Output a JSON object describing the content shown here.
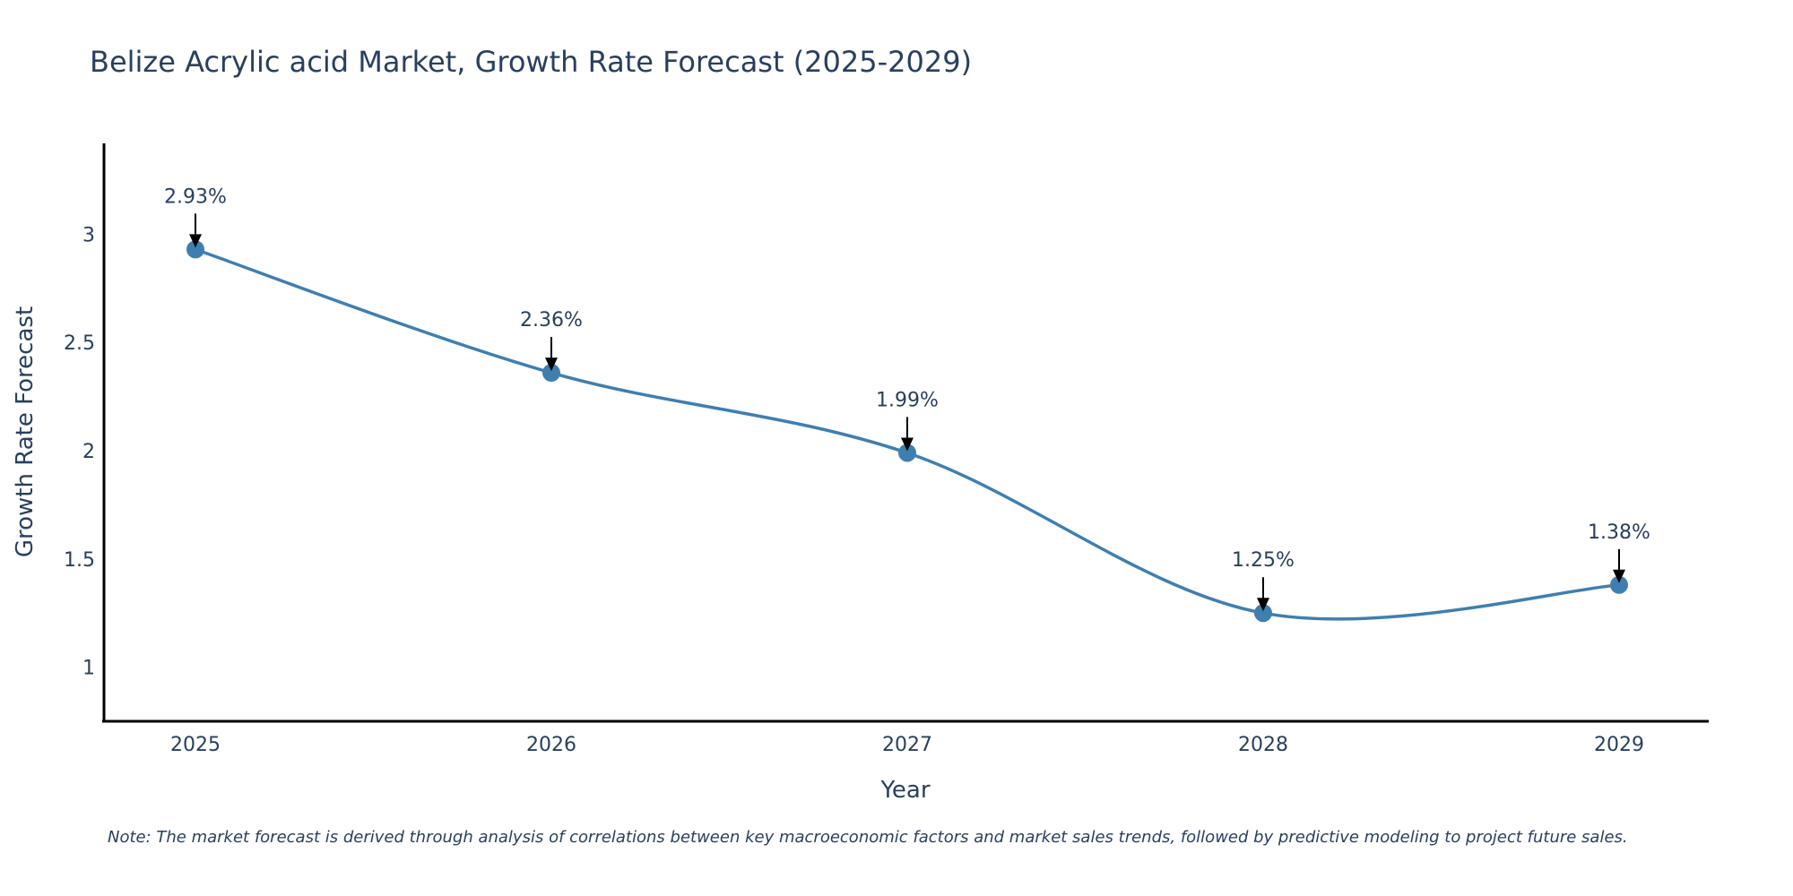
{
  "chart_data": {
    "type": "line",
    "title": "Belize Acrylic acid Market, Growth Rate Forecast (2025-2029)",
    "xlabel": "Year",
    "ylabel": "Growth Rate Forecast",
    "categories": [
      "2025",
      "2026",
      "2027",
      "2028",
      "2029"
    ],
    "series": [
      {
        "name": "Growth Rate Forecast",
        "values": [
          2.93,
          2.36,
          1.99,
          1.25,
          1.38
        ],
        "labels": [
          "2.93%",
          "2.36%",
          "1.99%",
          "1.25%",
          "1.38%"
        ],
        "color": "#3f7fb0"
      }
    ],
    "ylim": [
      0.75,
      3.42
    ],
    "yticks": [
      1,
      1.5,
      2,
      2.5,
      3
    ],
    "ytick_labels": [
      "1",
      "1.5",
      "2",
      "2.5",
      "3"
    ],
    "grid": false,
    "line_shape": "spline"
  },
  "note": "Note: The market forecast is derived through analysis of correlations between key macroeconomic factors and market sales trends, followed by predictive modeling to project future sales.",
  "colors": {
    "text": "#2a3f5f",
    "line": "#3f7fb0",
    "axis": "#000000"
  }
}
